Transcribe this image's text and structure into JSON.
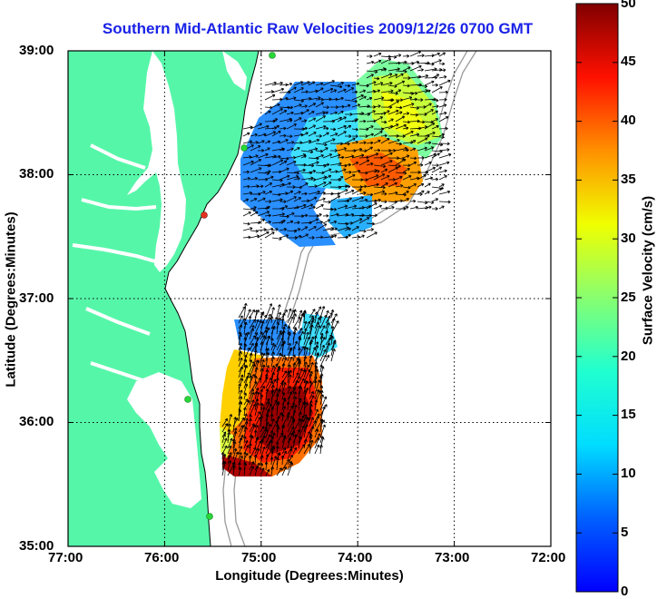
{
  "title": "Southern Mid-Atlantic Raw Velocities 2009/12/26 0700 GMT",
  "map": {
    "xlabel": "Longitude (Degrees:Minutes)",
    "ylabel": "Latitude (Degrees:Minutes)",
    "x_ticks": [
      "77:00",
      "76:00",
      "75:00",
      "74:00",
      "73:00",
      "72:00"
    ],
    "y_ticks": [
      "39:00",
      "38:00",
      "37:00",
      "36:00",
      "35:00"
    ],
    "lon_range": [
      -77,
      -72
    ],
    "lat_range": [
      35,
      39
    ],
    "grid": true
  },
  "colorbar": {
    "label": "Surface Velocity (cm/s)",
    "ticks": [
      "0",
      "5",
      "10",
      "15",
      "20",
      "25",
      "30",
      "35",
      "40",
      "45",
      "50"
    ],
    "range": [
      0,
      50
    ]
  },
  "colors": {
    "land": "#56f6a9",
    "title": "#1a22e6",
    "station": "#27d838",
    "station_alt": "#e43020"
  }
}
